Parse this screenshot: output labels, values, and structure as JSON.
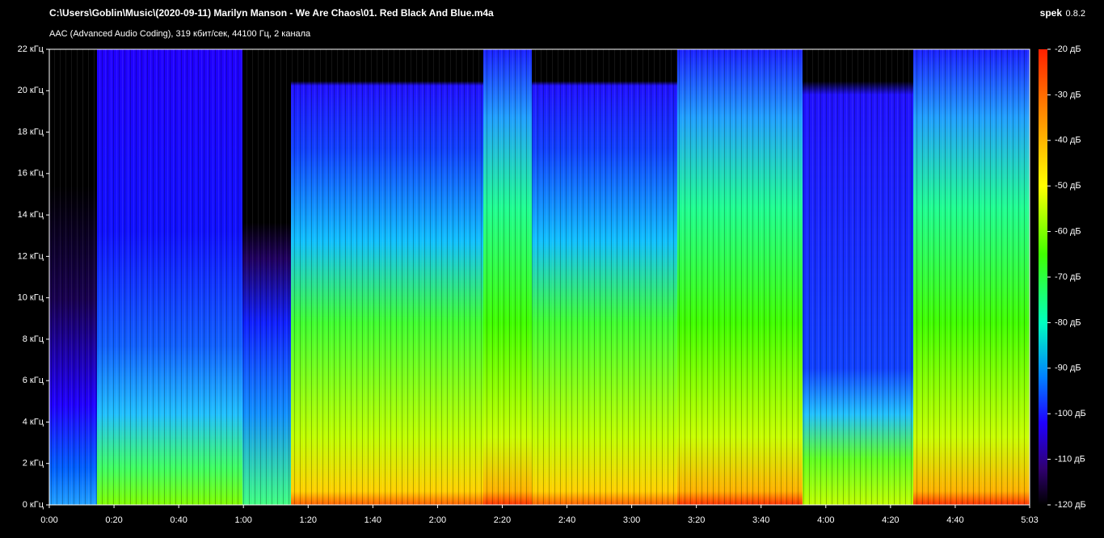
{
  "header": {
    "path": "C:\\Users\\Goblin\\Music\\(2020-09-11) Marilyn Manson - We Are Chaos\\01. Red Black And Blue.m4a",
    "info": "AAC (Advanced Audio Coding), 319 кбит/сек, 44100 Гц, 2 канала",
    "app": "spek",
    "version": "0.8.2"
  },
  "time_ticks": [
    {
      "value": 0,
      "label": "0:00"
    },
    {
      "value": 20,
      "label": "0:20"
    },
    {
      "value": 40,
      "label": "0:40"
    },
    {
      "value": 60,
      "label": "1:00"
    },
    {
      "value": 80,
      "label": "1:20"
    },
    {
      "value": 100,
      "label": "1:40"
    },
    {
      "value": 120,
      "label": "2:00"
    },
    {
      "value": 140,
      "label": "2:20"
    },
    {
      "value": 160,
      "label": "2:40"
    },
    {
      "value": 180,
      "label": "3:00"
    },
    {
      "value": 200,
      "label": "3:20"
    },
    {
      "value": 220,
      "label": "3:40"
    },
    {
      "value": 240,
      "label": "4:00"
    },
    {
      "value": 260,
      "label": "4:20"
    },
    {
      "value": 280,
      "label": "4:40"
    },
    {
      "value": 303,
      "label": "5:03"
    }
  ],
  "freq_ticks": [
    {
      "value": 0,
      "label": "0 кГц"
    },
    {
      "value": 2,
      "label": "2 кГц"
    },
    {
      "value": 4,
      "label": "4 кГц"
    },
    {
      "value": 6,
      "label": "6 кГц"
    },
    {
      "value": 8,
      "label": "8 кГц"
    },
    {
      "value": 10,
      "label": "10 кГц"
    },
    {
      "value": 12,
      "label": "12 кГц"
    },
    {
      "value": 14,
      "label": "14 кГц"
    },
    {
      "value": 16,
      "label": "16 кГц"
    },
    {
      "value": 18,
      "label": "18 кГц"
    },
    {
      "value": 20,
      "label": "20 кГц"
    },
    {
      "value": 22,
      "label": "22 кГц"
    }
  ],
  "level_ticks": [
    {
      "value": -20,
      "label": "-20 дБ"
    },
    {
      "value": -30,
      "label": "-30 дБ"
    },
    {
      "value": -40,
      "label": "-40 дБ"
    },
    {
      "value": -50,
      "label": "-50 дБ"
    },
    {
      "value": -60,
      "label": "-60 дБ"
    },
    {
      "value": -70,
      "label": "-70 дБ"
    },
    {
      "value": -80,
      "label": "-80 дБ"
    },
    {
      "value": -90,
      "label": "-90 дБ"
    },
    {
      "value": -100,
      "label": "-100 дБ"
    },
    {
      "value": -110,
      "label": "-110 дБ"
    },
    {
      "value": -120,
      "label": "-120 дБ"
    }
  ]
}
